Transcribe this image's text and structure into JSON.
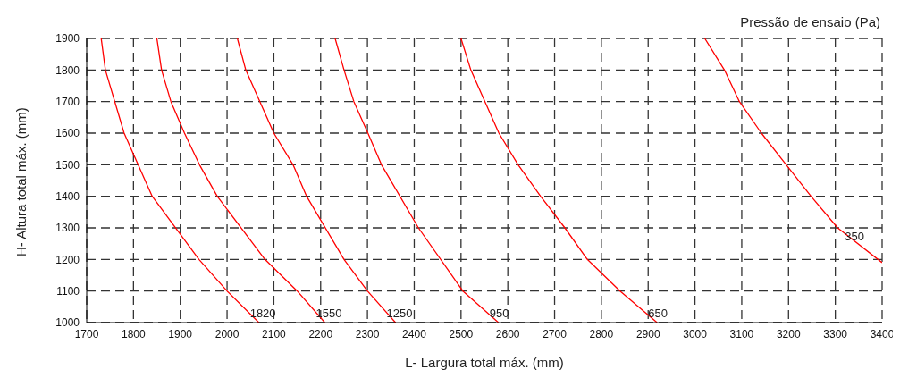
{
  "chart_data": {
    "type": "line",
    "legend_title": "Pressão de ensaio (Pa)",
    "xlabel": "L- Largura total máx. (mm)",
    "ylabel": "H- Altura total máx. (mm)",
    "xlim": [
      1700,
      3400
    ],
    "xticks": [
      1700,
      1800,
      1900,
      2000,
      2100,
      2200,
      2300,
      2400,
      2500,
      2600,
      2700,
      2800,
      2900,
      3000,
      3100,
      3200,
      3300,
      3400
    ],
    "ylim": [
      1000,
      1900
    ],
    "yticks": [
      1000,
      1100,
      1200,
      1300,
      1400,
      1500,
      1600,
      1700,
      1800,
      1900
    ],
    "grid": true,
    "legend": false,
    "marker": "none",
    "line_style": "solid",
    "series": [
      {
        "name": "1820",
        "color": "#ff0000",
        "x": [
          1731,
          1740,
          1780,
          1840,
          1940,
          2000,
          2068
        ],
        "values": [
          1900,
          1800,
          1600,
          1400,
          1200,
          1100,
          1000
        ]
      },
      {
        "name": "1550",
        "color": "#ff0000",
        "x": [
          1850,
          1860,
          1880,
          1909,
          1941,
          1979,
          2081,
          2150,
          2209
        ],
        "values": [
          1900,
          1800,
          1700,
          1600,
          1500,
          1400,
          1200,
          1100,
          1000
        ]
      },
      {
        "name": "1250",
        "color": "#ff0000",
        "x": [
          2022,
          2040,
          2100,
          2141,
          2170,
          2250,
          2300,
          2360
        ],
        "values": [
          1900,
          1800,
          1600,
          1500,
          1400,
          1200,
          1100,
          1000
        ]
      },
      {
        "name": "950",
        "color": "#ff0000",
        "x": [
          2231,
          2250,
          2271,
          2301,
          2330,
          2409,
          2504,
          2580
        ],
        "values": [
          1900,
          1800,
          1700,
          1600,
          1500,
          1300,
          1100,
          1000
        ]
      },
      {
        "name": "650",
        "color": "#ff0000",
        "x": [
          2500,
          2521,
          2581,
          2622,
          2670,
          2722,
          2770,
          2840,
          2919
        ],
        "values": [
          1900,
          1800,
          1600,
          1500,
          1400,
          1300,
          1200,
          1100,
          1000
        ]
      },
      {
        "name": "350",
        "color": "#ff0000",
        "x": [
          3021,
          3063,
          3095,
          3142,
          3195,
          3248,
          3305,
          3400
        ],
        "values": [
          1900,
          1800,
          1700,
          1600,
          1500,
          1400,
          1300,
          1190
        ]
      }
    ]
  }
}
